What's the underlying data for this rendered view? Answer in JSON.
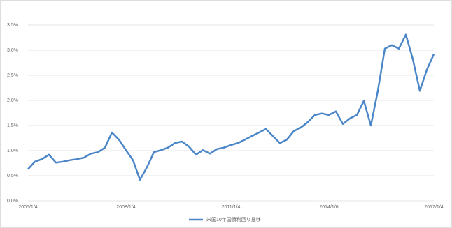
{
  "chart_data": {
    "type": "line",
    "categories": [
      "2005/1/4",
      null,
      null,
      null,
      null,
      null,
      null,
      null,
      null,
      null,
      null,
      null,
      null,
      null,
      "2008/1/4",
      null,
      null,
      null,
      null,
      null,
      null,
      null,
      null,
      null,
      null,
      null,
      null,
      null,
      null,
      "2011/1/4",
      null,
      null,
      null,
      null,
      null,
      null,
      null,
      null,
      null,
      null,
      null,
      null,
      null,
      "2014/1/6",
      null,
      null,
      null,
      null,
      null,
      null,
      null,
      null,
      null,
      null,
      null,
      null,
      null,
      null,
      "2017/1/4"
    ],
    "series": [
      {
        "name": "米国10年国債利回り推移",
        "color": "#4a86c8",
        "values": [
          0.63,
          0.78,
          0.83,
          0.92,
          0.76,
          0.78,
          0.81,
          0.83,
          0.86,
          0.94,
          0.97,
          1.06,
          1.36,
          1.22,
          1.01,
          0.81,
          0.42,
          0.67,
          0.97,
          1.01,
          1.06,
          1.15,
          1.18,
          1.08,
          0.92,
          1.01,
          0.94,
          1.03,
          1.06,
          1.11,
          1.15,
          1.22,
          1.29,
          1.36,
          1.43,
          1.29,
          1.15,
          1.22,
          1.39,
          1.46,
          1.57,
          1.71,
          1.74,
          1.71,
          1.78,
          1.53,
          1.64,
          1.71,
          1.99,
          1.5,
          2.19,
          3.03,
          3.1,
          3.03,
          3.31,
          2.82,
          2.19,
          2.61,
          2.92
        ]
      }
    ],
    "ylim": [
      0,
      3.5
    ],
    "yticks": [
      {
        "value": 0,
        "label": "0.0%"
      },
      {
        "value": 0.5,
        "label": "0.5%"
      },
      {
        "value": 1,
        "label": "1.0%"
      },
      {
        "value": 1.5,
        "label": "1.5%"
      },
      {
        "value": 2,
        "label": "2.0%"
      },
      {
        "value": 2.5,
        "label": "2.5%"
      },
      {
        "value": 3,
        "label": "3.0%"
      },
      {
        "value": 3.5,
        "label": "3.5%"
      }
    ],
    "grid": true,
    "legend": "bottom"
  }
}
